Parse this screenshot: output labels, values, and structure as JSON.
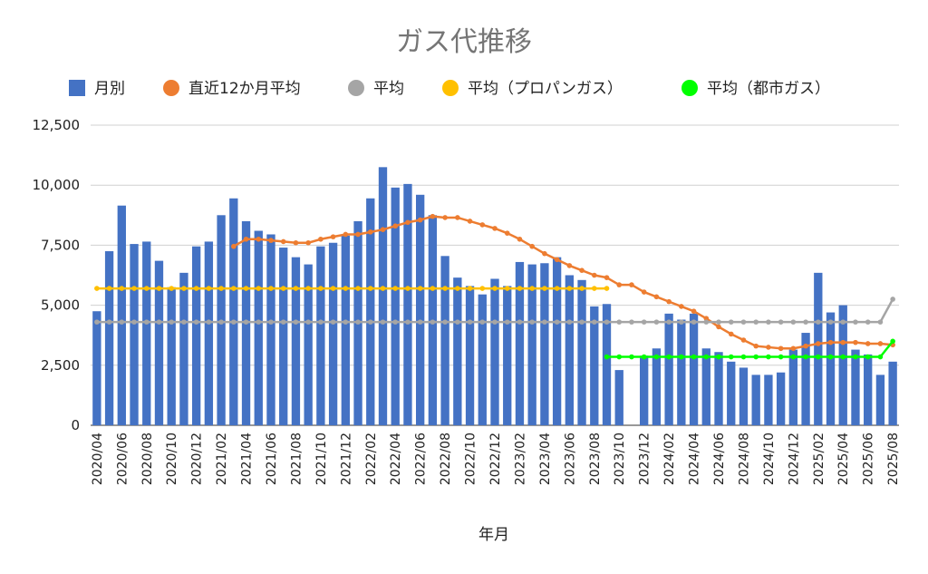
{
  "chart_data": {
    "type": "bar",
    "title": "ガス代推移",
    "xlabel": "年月",
    "ylabel": "",
    "ylim": [
      0,
      12500
    ],
    "yticks": [
      "0",
      "2,500",
      "5,000",
      "7,500",
      "10,000",
      "12,500"
    ],
    "grid": true,
    "legend_position": "top",
    "categories": [
      "2020/04",
      "2020/05",
      "2020/06",
      "2020/07",
      "2020/08",
      "2020/09",
      "2020/10",
      "2020/11",
      "2020/12",
      "2021/01",
      "2021/02",
      "2021/03",
      "2021/04",
      "2021/05",
      "2021/06",
      "2021/07",
      "2021/08",
      "2021/09",
      "2021/10",
      "2021/11",
      "2021/12",
      "2022/01",
      "2022/02",
      "2022/03",
      "2022/04",
      "2022/05",
      "2022/06",
      "2022/07",
      "2022/08",
      "2022/09",
      "2022/10",
      "2022/11",
      "2022/12",
      "2023/01",
      "2023/02",
      "2023/03",
      "2023/04",
      "2023/05",
      "2023/06",
      "2023/07",
      "2023/08",
      "2023/09",
      "2023/10",
      "2023/11",
      "2023/12",
      "2024/01",
      "2024/02",
      "2024/03",
      "2024/04",
      "2024/05",
      "2024/06",
      "2024/07",
      "2024/08",
      "2024/09",
      "2024/10",
      "2024/11",
      "2024/12",
      "2025/01",
      "2025/02",
      "2025/03",
      "2025/04",
      "2025/05",
      "2025/06",
      "2025/07",
      "2025/08"
    ],
    "xtick_labels": [
      "2020/04",
      "2020/06",
      "2020/08",
      "2020/10",
      "2020/12",
      "2021/02",
      "2021/04",
      "2021/06",
      "2021/08",
      "2021/10",
      "2021/12",
      "2022/02",
      "2022/04",
      "2022/06",
      "2022/08",
      "2022/10",
      "2022/12",
      "2023/02",
      "2023/04",
      "2023/06",
      "2023/08",
      "2023/10",
      "2023/12",
      "2024/02",
      "2024/04",
      "2024/06",
      "2024/08",
      "2024/10",
      "2024/12",
      "2025/02",
      "2025/04",
      "2025/06",
      "2025/08"
    ],
    "series": [
      {
        "name": "月別",
        "kind": "bar",
        "color": "#4472C4",
        "values": [
          4750,
          7250,
          9150,
          7550,
          7650,
          6850,
          5750,
          6350,
          7450,
          7650,
          8750,
          9450,
          8500,
          8100,
          7950,
          7400,
          7000,
          6700,
          7450,
          7600,
          7900,
          8500,
          9450,
          10750,
          9900,
          10050,
          9600,
          8750,
          7050,
          6150,
          5800,
          5450,
          6100,
          5800,
          6800,
          6700,
          6750,
          7000,
          6250,
          6050,
          4950,
          5050,
          2300,
          null,
          2900,
          3200,
          4650,
          4400,
          4650,
          3200,
          3050,
          2650,
          2400,
          2100,
          2100,
          2200,
          3150,
          3850,
          6350,
          4700,
          5000,
          3150,
          2950,
          2100,
          2650
        ]
      },
      {
        "name": "直近12か月平均",
        "kind": "line",
        "color": "#ED7D31",
        "values": [
          null,
          null,
          null,
          null,
          null,
          null,
          null,
          null,
          null,
          null,
          null,
          7450,
          7750,
          7750,
          7700,
          7650,
          7600,
          7600,
          7750,
          7850,
          7950,
          7950,
          8050,
          8150,
          8300,
          8450,
          8550,
          8700,
          8650,
          8650,
          8500,
          8350,
          8200,
          8000,
          7750,
          7450,
          7150,
          6900,
          6650,
          6450,
          6250,
          6150,
          5850,
          5850,
          5550,
          5350,
          5150,
          4950,
          4750,
          4450,
          4100,
          3800,
          3550,
          3300,
          3250,
          3200,
          3200,
          3300,
          3400,
          3450,
          3450,
          3450,
          3400,
          3400,
          3350
        ]
      },
      {
        "name": "平均",
        "kind": "line",
        "color": "#A5A5A5",
        "values": [
          4300,
          4300,
          4300,
          4300,
          4300,
          4300,
          4300,
          4300,
          4300,
          4300,
          4300,
          4300,
          4300,
          4300,
          4300,
          4300,
          4300,
          4300,
          4300,
          4300,
          4300,
          4300,
          4300,
          4300,
          4300,
          4300,
          4300,
          4300,
          4300,
          4300,
          4300,
          4300,
          4300,
          4300,
          4300,
          4300,
          4300,
          4300,
          4300,
          4300,
          4300,
          4300,
          4300,
          4300,
          4300,
          4300,
          4300,
          4300,
          4300,
          4300,
          4300,
          4300,
          4300,
          4300,
          4300,
          4300,
          4300,
          4300,
          4300,
          4300,
          4300,
          4300,
          4300,
          4300,
          5250
        ]
      },
      {
        "name": "平均（プロパンガス）",
        "kind": "line",
        "color": "#FFC000",
        "values": [
          5700,
          5700,
          5700,
          5700,
          5700,
          5700,
          5700,
          5700,
          5700,
          5700,
          5700,
          5700,
          5700,
          5700,
          5700,
          5700,
          5700,
          5700,
          5700,
          5700,
          5700,
          5700,
          5700,
          5700,
          5700,
          5700,
          5700,
          5700,
          5700,
          5700,
          5700,
          5700,
          5700,
          5700,
          5700,
          5700,
          5700,
          5700,
          5700,
          5700,
          5700,
          5700,
          null,
          null,
          null,
          null,
          null,
          null,
          null,
          null,
          null,
          null,
          null,
          null,
          null,
          null,
          null,
          null,
          null,
          null,
          null,
          null,
          null,
          null,
          null
        ]
      },
      {
        "name": "平均（都市ガス）",
        "kind": "line",
        "color": "#00FF00",
        "values": [
          null,
          null,
          null,
          null,
          null,
          null,
          null,
          null,
          null,
          null,
          null,
          null,
          null,
          null,
          null,
          null,
          null,
          null,
          null,
          null,
          null,
          null,
          null,
          null,
          null,
          null,
          null,
          null,
          null,
          null,
          null,
          null,
          null,
          null,
          null,
          null,
          null,
          null,
          null,
          null,
          null,
          2850,
          2850,
          2850,
          2850,
          2850,
          2850,
          2850,
          2850,
          2850,
          2850,
          2850,
          2850,
          2850,
          2850,
          2850,
          2850,
          2850,
          2850,
          2850,
          2850,
          2850,
          2850,
          2850,
          3500
        ]
      }
    ]
  }
}
